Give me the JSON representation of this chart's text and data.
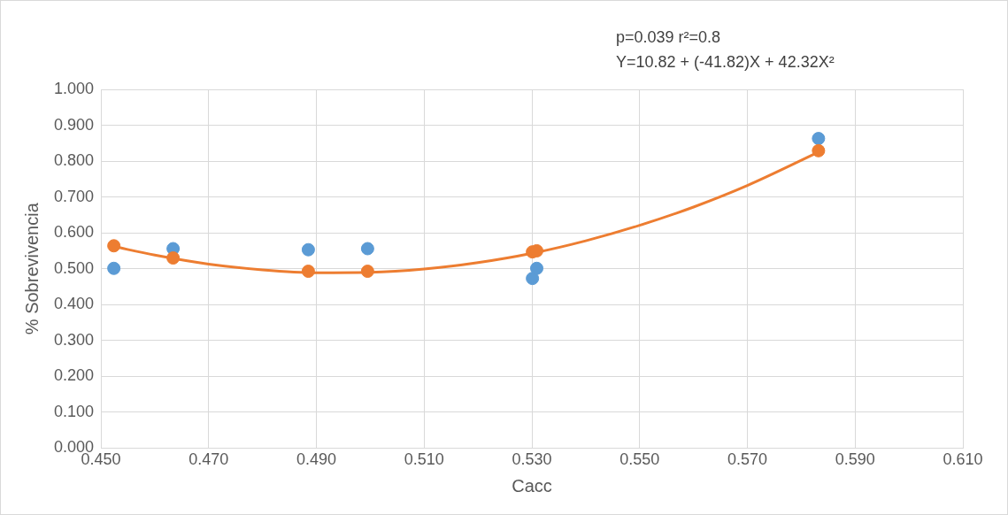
{
  "chart_data": {
    "type": "scatter",
    "xlabel": "Cacc",
    "ylabel": "% Sobrevivencia",
    "annotations": [
      "p=0.039 r²=0.8",
      "Y=10.82 + (-41.82)X + 42.32X²"
    ],
    "grid": true,
    "legend": false,
    "line_style": "solid",
    "xlim": [
      0.45,
      0.61
    ],
    "xticks": [
      {
        "value": 0.45,
        "label": "0.450"
      },
      {
        "value": 0.47,
        "label": "0.470"
      },
      {
        "value": 0.49,
        "label": "0.490"
      },
      {
        "value": 0.51,
        "label": "0.510"
      },
      {
        "value": 0.53,
        "label": "0.530"
      },
      {
        "value": 0.55,
        "label": "0.550"
      },
      {
        "value": 0.57,
        "label": "0.570"
      },
      {
        "value": 0.59,
        "label": "0.590"
      },
      {
        "value": 0.61,
        "label": "0.610"
      }
    ],
    "ylim": [
      0,
      1
    ],
    "yticks": [
      {
        "value": 0,
        "label": "0.000"
      },
      {
        "value": 0.1,
        "label": "0.100"
      },
      {
        "value": 0.2,
        "label": "0.200"
      },
      {
        "value": 0.3,
        "label": "0.300"
      },
      {
        "value": 0.4,
        "label": "0.400"
      },
      {
        "value": 0.5,
        "label": "0.500"
      },
      {
        "value": 0.6,
        "label": "0.600"
      },
      {
        "value": 0.7,
        "label": "0.700"
      },
      {
        "value": 0.8,
        "label": "0.800"
      },
      {
        "value": 0.9,
        "label": "0.900"
      },
      {
        "value": 1,
        "label": "1.000"
      }
    ],
    "series": [
      {
        "type": "line",
        "marker": "none",
        "color": "#ed7d31",
        "x": [
          0.4524,
          0.46,
          0.47,
          0.48,
          0.49,
          0.5,
          0.51,
          0.52,
          0.53,
          0.54,
          0.55,
          0.56,
          0.57,
          0.5832
        ],
        "values": [
          0.562,
          0.538,
          0.513,
          0.497,
          0.489,
          0.49,
          0.499,
          0.517,
          0.543,
          0.578,
          0.621,
          0.672,
          0.732,
          0.825
        ]
      },
      {
        "type": "scatter",
        "marker": "circle",
        "color": "#5b9bd5",
        "x": [
          0.4524,
          0.4634,
          0.4885,
          0.4995,
          0.5301,
          0.5309,
          0.5832
        ],
        "values": [
          0.501,
          0.556,
          0.553,
          0.556,
          0.473,
          0.501,
          0.863
        ]
      },
      {
        "type": "scatter",
        "marker": "circle",
        "color": "#ed7d31",
        "x": [
          0.4524,
          0.4634,
          0.4885,
          0.4995,
          0.5301,
          0.5309,
          0.5832
        ],
        "values": [
          0.564,
          0.53,
          0.493,
          0.493,
          0.547,
          0.55,
          0.829
        ]
      }
    ]
  }
}
